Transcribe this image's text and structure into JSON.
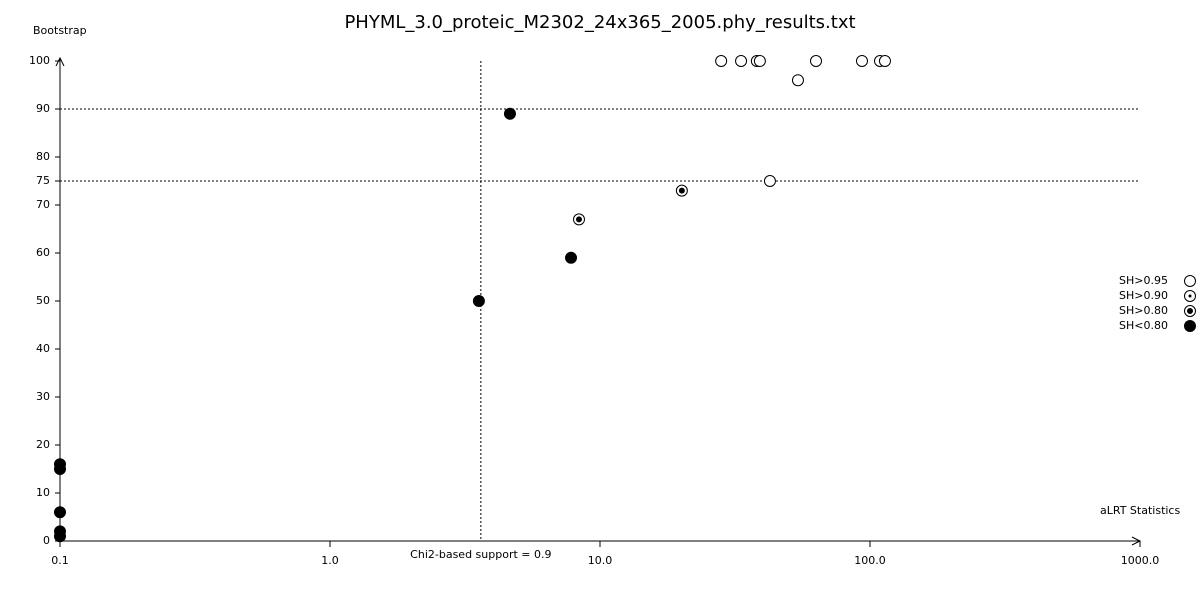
{
  "chart_data": {
    "type": "scatter",
    "title": "PHYML_3.0_proteic_M2302_24x365_2005.phy_results.txt",
    "x_label": "aLRT Statistics",
    "y_label": "Bootstrap",
    "x_log": true,
    "xlim": [
      0.1,
      1000
    ],
    "xticks": [
      0.1,
      {
        "value": 1,
        "label": "1.0"
      },
      {
        "value": 10,
        "label": "10.0"
      },
      {
        "value": 100,
        "label": "100.0"
      },
      {
        "value": 1000,
        "label": "1000.0"
      }
    ],
    "ylim": [
      0,
      100
    ],
    "yticks": [
      0,
      10,
      20,
      30,
      40,
      50,
      60,
      70,
      75,
      80,
      90,
      100
    ],
    "hlines": [
      90,
      75
    ],
    "vline": {
      "value": 3.62,
      "label": "Chi2-based support = 0.9"
    },
    "legend": "right",
    "series": [
      {
        "name": "SH>0.95",
        "marker": "open",
        "color": "#000000",
        "x": [
          28.1,
          33.3,
          38.1,
          39.1,
          63.1,
          93.4,
          108.9,
          113.6,
          54.1,
          42.6
        ],
        "values": [
          100,
          100,
          100,
          100,
          100,
          100,
          100,
          100,
          96,
          75
        ]
      },
      {
        "name": "SH>0.90",
        "marker": "dot",
        "color": "#000000",
        "x": [],
        "values": []
      },
      {
        "name": "SH>0.80",
        "marker": "bullseye",
        "color": "#000000",
        "x": [
          20.1,
          8.36
        ],
        "values": [
          73,
          67
        ]
      },
      {
        "name": "SH<0.80",
        "marker": "filled",
        "color": "#000000",
        "x": [
          4.64,
          3.56,
          7.81,
          0.1,
          0.1,
          0.1,
          0.1,
          0.1
        ],
        "values": [
          89,
          50,
          59,
          16,
          15,
          6,
          2,
          1
        ]
      }
    ]
  }
}
